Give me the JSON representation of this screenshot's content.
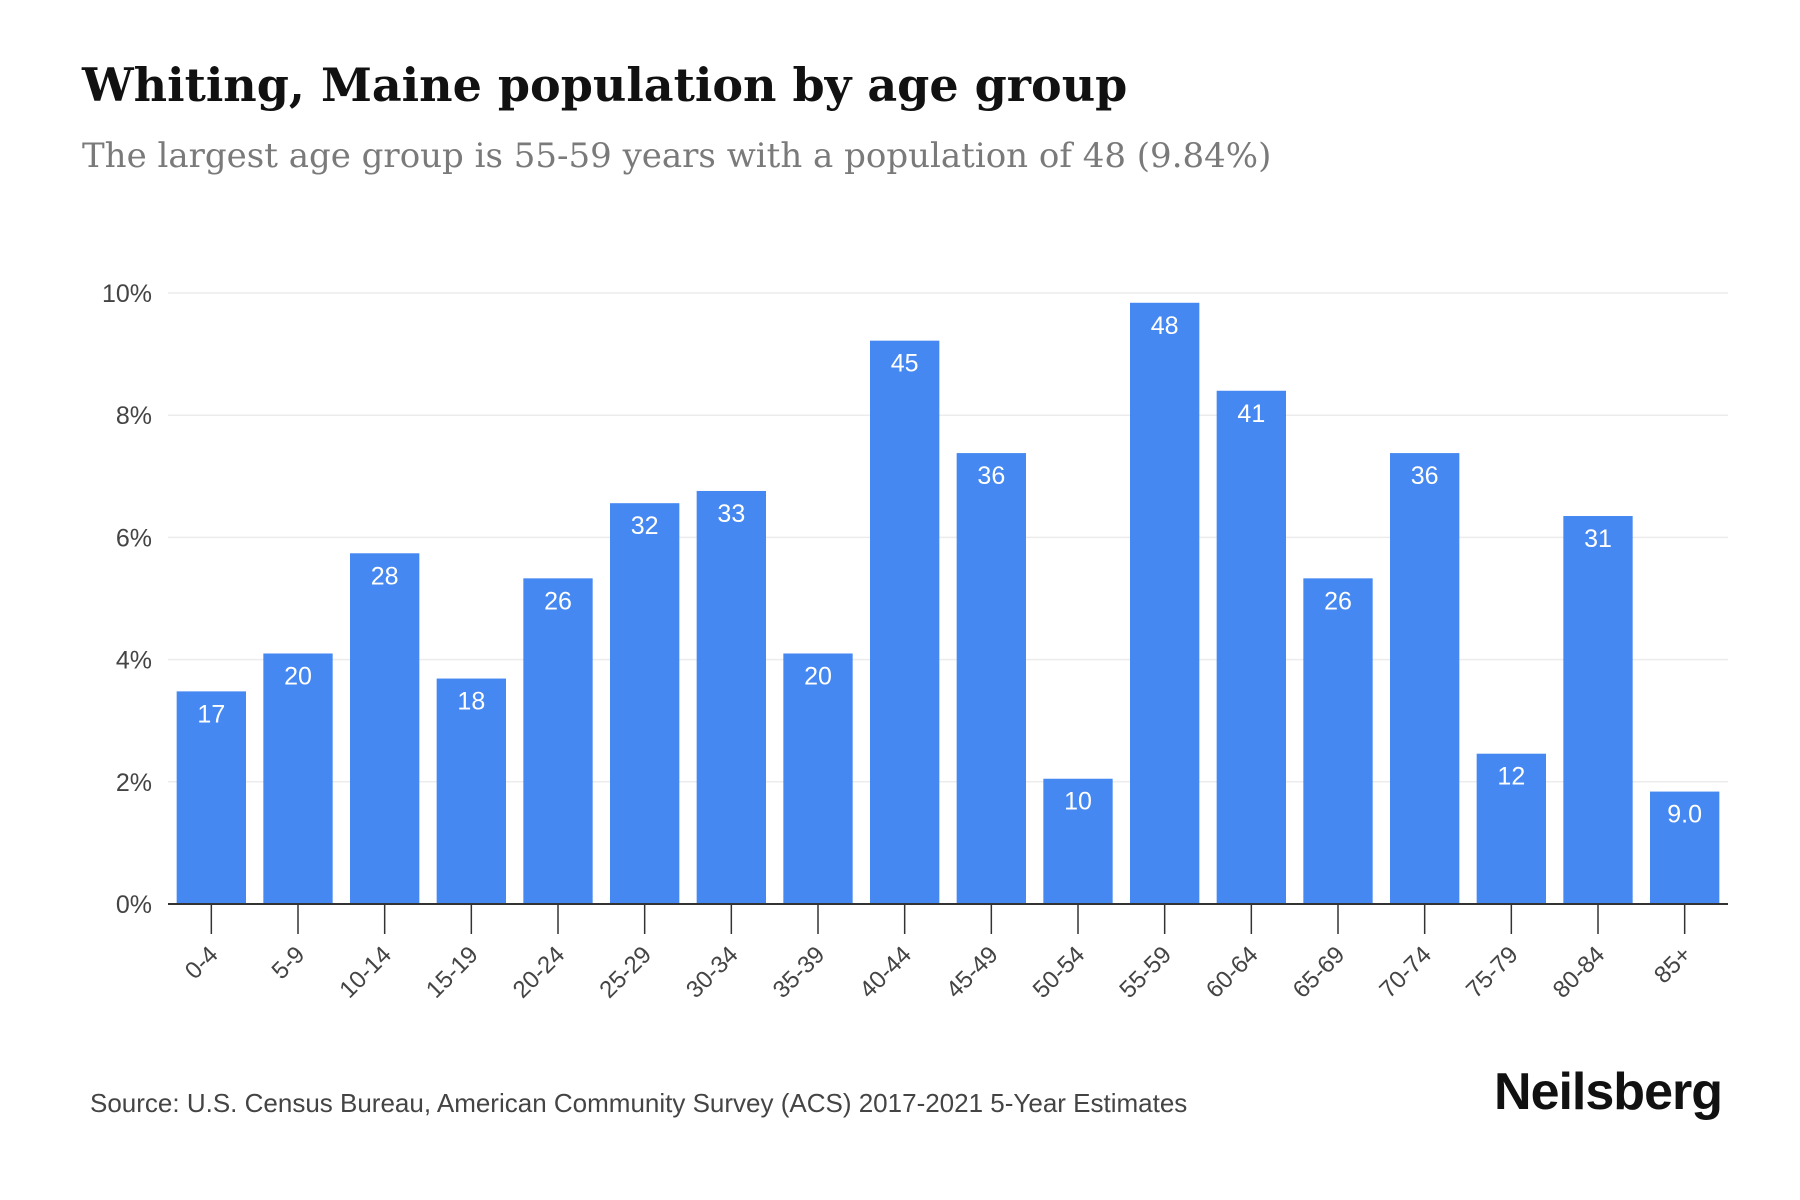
{
  "header": {
    "title": "Whiting, Maine population by age group",
    "subtitle": "The largest age group is 55-59 years with a population of 48 (9.84%)"
  },
  "footer": {
    "source": "Source: U.S. Census Bureau, American Community Survey (ACS) 2017-2021 5-Year Estimates",
    "brand": "Neilsberg"
  },
  "colors": {
    "bar": "#4688F1",
    "bar_label": "#ffffff",
    "grid": "#ececec",
    "axis": "#333333",
    "tick_text": "#444444"
  },
  "chart_data": {
    "type": "bar",
    "title": "Whiting, Maine population by age group",
    "subtitle": "The largest age group is 55-59 years with a population of 48 (9.84%)",
    "xlabel": "",
    "ylabel": "",
    "categories": [
      "0-4",
      "5-9",
      "10-14",
      "15-19",
      "20-24",
      "25-29",
      "30-34",
      "35-39",
      "40-44",
      "45-49",
      "50-54",
      "55-59",
      "60-64",
      "65-69",
      "70-74",
      "75-79",
      "80-84",
      "85+"
    ],
    "values": [
      3.48,
      4.1,
      5.74,
      3.69,
      5.33,
      6.56,
      6.76,
      4.1,
      9.22,
      7.38,
      2.05,
      9.84,
      8.4,
      5.33,
      7.38,
      2.46,
      6.35,
      1.84
    ],
    "data_labels": [
      "17",
      "20",
      "28",
      "18",
      "26",
      "32",
      "33",
      "20",
      "45",
      "36",
      "10",
      "48",
      "41",
      "26",
      "36",
      "12",
      "31",
      "9.0"
    ],
    "ylim": [
      0,
      10
    ],
    "yticks": [
      0,
      2,
      4,
      6,
      8,
      10
    ],
    "ytick_labels": [
      "0%",
      "2%",
      "4%",
      "6%",
      "8%",
      "10%"
    ],
    "grid": true,
    "legend": "none"
  }
}
